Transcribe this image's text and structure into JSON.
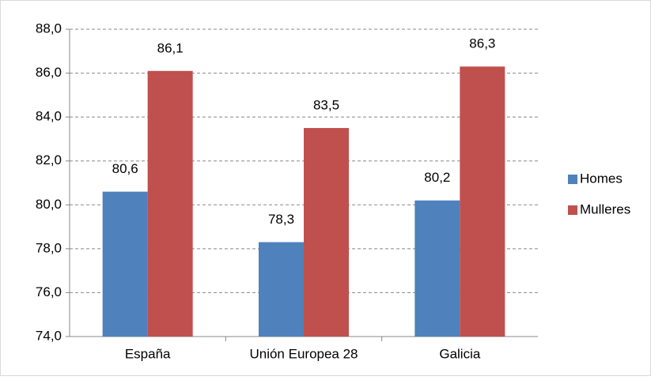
{
  "chart_data": {
    "type": "bar",
    "categories": [
      "España",
      "Unión Europea 28",
      "Galicia"
    ],
    "series": [
      {
        "name": "Homes",
        "color": "#4f81bd",
        "values": [
          80.6,
          78.3,
          80.2
        ],
        "value_labels": [
          "80,6",
          "78,3",
          "80,2"
        ]
      },
      {
        "name": "Mulleres",
        "color": "#c0504d",
        "values": [
          86.1,
          83.5,
          86.3
        ],
        "value_labels": [
          "86,1",
          "83,5",
          "86,3"
        ]
      }
    ],
    "ylim": [
      74,
      88
    ],
    "yticks": [
      {
        "value": 74,
        "label": "74,0"
      },
      {
        "value": 76,
        "label": "76,0"
      },
      {
        "value": 78,
        "label": "78,0"
      },
      {
        "value": 80,
        "label": "80,0"
      },
      {
        "value": 82,
        "label": "82,0"
      },
      {
        "value": 84,
        "label": "84,0"
      },
      {
        "value": 86,
        "label": "86,0"
      },
      {
        "value": 88,
        "label": "88,0"
      }
    ],
    "grid": true,
    "legend": "right"
  }
}
